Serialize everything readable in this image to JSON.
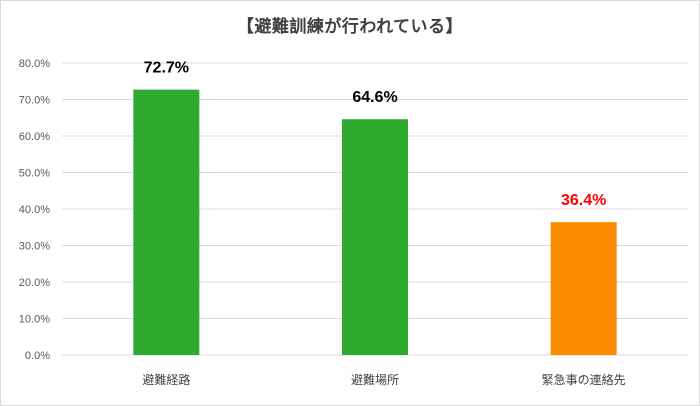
{
  "chart_data": {
    "type": "bar",
    "title": "【避難訓練が行われている】",
    "categories": [
      "避難経路",
      "避難場所",
      "緊急事の連絡先"
    ],
    "values": [
      72.7,
      64.6,
      36.4
    ],
    "data_labels": [
      "72.7%",
      "64.6%",
      "36.4%"
    ],
    "bar_colors": [
      "#2eaa2e",
      "#2eaa2e",
      "#fb8c00"
    ],
    "label_colors": [
      "#000000",
      "#000000",
      "#ff0000"
    ],
    "ylim": [
      0,
      80
    ],
    "yticks": [
      0,
      10,
      20,
      30,
      40,
      50,
      60,
      70,
      80
    ],
    "ytick_labels": [
      "0.0%",
      "10.0%",
      "20.0%",
      "30.0%",
      "40.0%",
      "50.0%",
      "60.0%",
      "70.0%",
      "80.0%"
    ],
    "grid": true,
    "gridline_color": "#d9d9d9"
  }
}
